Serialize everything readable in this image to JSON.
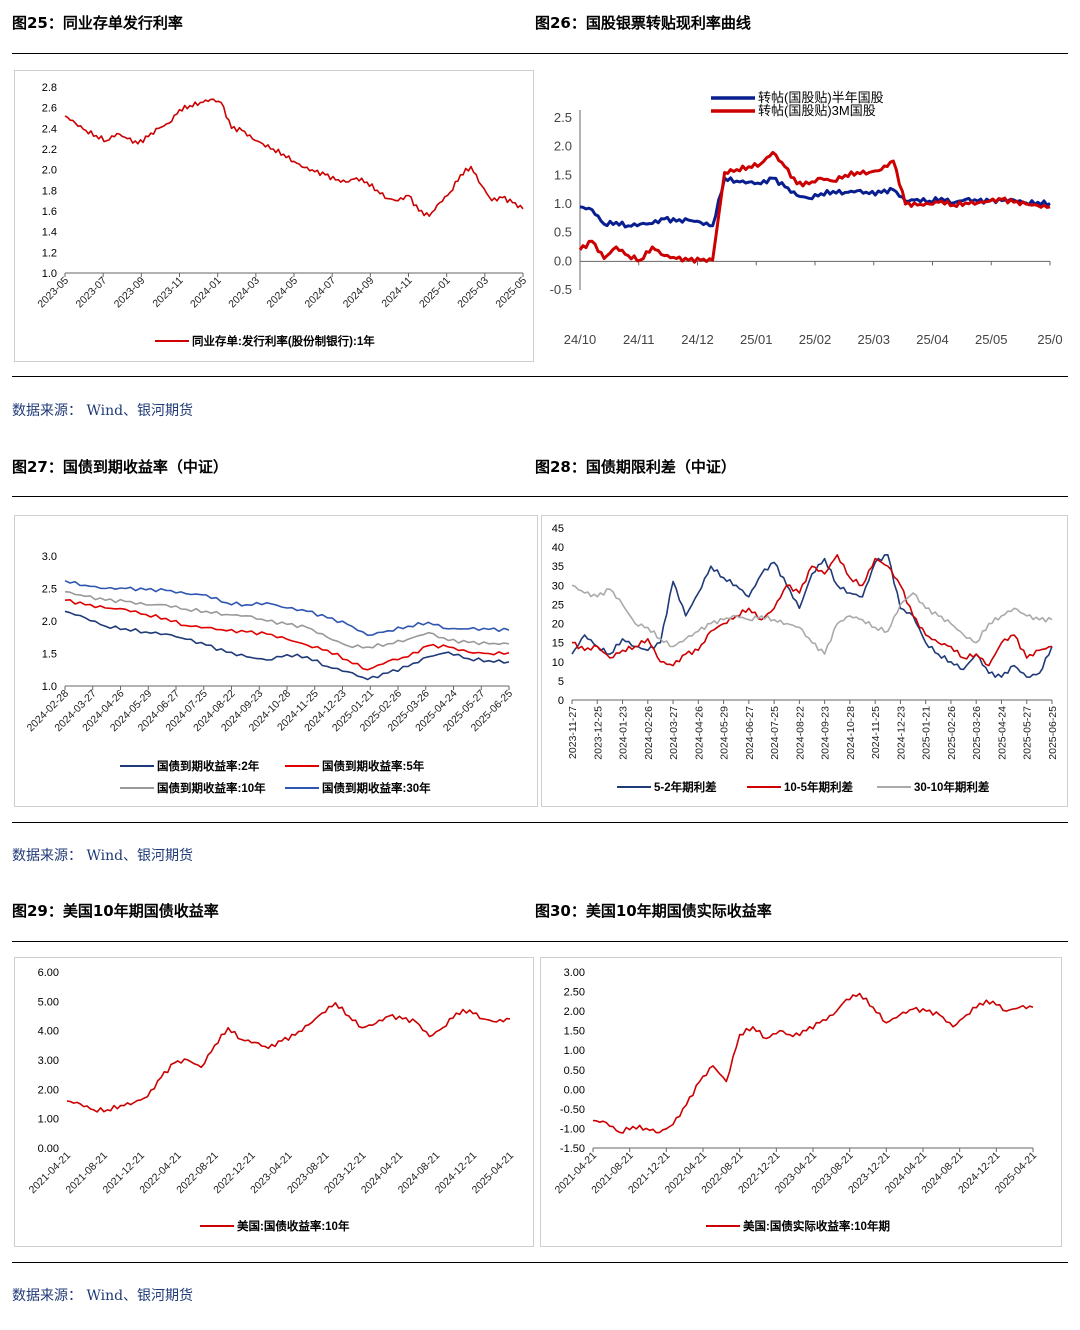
{
  "section1": {
    "left_title": "图25：同业存单发行利率",
    "right_title": "图26：国股银票转贴现利率曲线",
    "source": "数据来源： Wind、银河期货"
  },
  "section2": {
    "left_title": "图27：国债到期收益率（中证）",
    "right_title": "图28：国债期限利差（中证）",
    "source": "数据来源： Wind、银河期货"
  },
  "section3": {
    "left_title": "图29：美国10年期国债收益率",
    "right_title": "图30：美国10年期国债实际收益率",
    "source": "数据来源： Wind、银河期货"
  },
  "chart_data": [
    {
      "id": "fig25",
      "type": "line",
      "y_ticks": [
        "2.8",
        "2.6",
        "2.4",
        "2.2",
        "2.0",
        "1.8",
        "1.6",
        "1.4",
        "1.2",
        "1.0"
      ],
      "ylim": [
        1.0,
        2.8
      ],
      "x_ticks": [
        "2023-05",
        "2023-07",
        "2023-09",
        "2023-11",
        "2024-01",
        "2024-03",
        "2024-05",
        "2024-07",
        "2024-09",
        "2024-11",
        "2025-01",
        "2025-03",
        "2025-05"
      ],
      "series": [
        {
          "name": "同业存单:发行利率(股份制银行):1年",
          "color": "#cc0000",
          "values": [
            2.52,
            2.45,
            2.38,
            2.33,
            2.28,
            2.35,
            2.3,
            2.25,
            2.32,
            2.4,
            2.45,
            2.58,
            2.62,
            2.65,
            2.68,
            2.65,
            2.4,
            2.38,
            2.3,
            2.25,
            2.2,
            2.15,
            2.08,
            2.02,
            1.98,
            1.95,
            1.9,
            1.88,
            1.92,
            1.88,
            1.8,
            1.72,
            1.7,
            1.75,
            1.6,
            1.55,
            1.68,
            1.78,
            1.95,
            2.03,
            1.85,
            1.7,
            1.73,
            1.68,
            1.62
          ]
        }
      ]
    },
    {
      "id": "fig26",
      "type": "line",
      "y_ticks": [
        "2.5",
        "2.0",
        "1.5",
        "1.0",
        "0.5",
        "0.0",
        "-0.5"
      ],
      "ylim": [
        -0.5,
        2.5
      ],
      "x_ticks": [
        "24/10",
        "24/11",
        "24/12",
        "25/01",
        "25/02",
        "25/03",
        "25/04",
        "25/05",
        "25/0"
      ],
      "series": [
        {
          "name": "转帖(国股贴)半年国股",
          "color": "#0a1f8f",
          "values": [
            0.95,
            0.9,
            0.65,
            0.68,
            0.62,
            0.65,
            0.66,
            0.74,
            0.7,
            0.72,
            0.68,
            0.62,
            1.45,
            1.4,
            1.38,
            1.35,
            1.45,
            1.3,
            1.15,
            1.1,
            1.18,
            1.22,
            1.2,
            1.23,
            1.18,
            1.2,
            1.25,
            1.05,
            1.08,
            1.05,
            1.1,
            1.02,
            1.08,
            1.05,
            1.05,
            1.06,
            1.07,
            1.02,
            1.03,
            1.01
          ]
        },
        {
          "name": "转帖(国股贴)3M国股",
          "color": "#cc0000",
          "values": [
            0.2,
            0.35,
            0.05,
            0.25,
            0.1,
            0.02,
            0.25,
            0.1,
            0.05,
            0.02,
            0.02,
            0.02,
            1.55,
            1.6,
            1.65,
            1.7,
            1.9,
            1.65,
            1.35,
            1.35,
            1.45,
            1.4,
            1.5,
            1.55,
            1.55,
            1.6,
            1.75,
            1.0,
            0.98,
            1.0,
            1.05,
            0.98,
            1.02,
            1.02,
            1.05,
            1.08,
            1.03,
            1.0,
            0.97,
            0.95
          ]
        }
      ]
    },
    {
      "id": "fig27",
      "type": "line",
      "y_ticks": [
        "3.0",
        "2.5",
        "2.0",
        "1.5",
        "1.0"
      ],
      "ylim": [
        1.0,
        3.0
      ],
      "x_ticks": [
        "2024-02-28",
        "2024-03-27",
        "2024-04-26",
        "2024-05-29",
        "2024-06-27",
        "2024-07-25",
        "2024-08-22",
        "2024-09-23",
        "2024-10-28",
        "2024-11-25",
        "2024-12-23",
        "2025-01-21",
        "2025-02-26",
        "2025-03-26",
        "2025-04-24",
        "2025-05-27",
        "2025-06-25"
      ],
      "series": [
        {
          "name": "国债到期收益率:2年",
          "color": "#1f3a78",
          "values": [
            2.15,
            2.05,
            1.92,
            1.88,
            1.83,
            1.8,
            1.72,
            1.63,
            1.52,
            1.45,
            1.4,
            1.48,
            1.45,
            1.3,
            1.22,
            1.1,
            1.2,
            1.3,
            1.45,
            1.52,
            1.42,
            1.39,
            1.37
          ]
        },
        {
          "name": "国债到期收益率:5年",
          "color": "#e00000",
          "values": [
            2.32,
            2.25,
            2.2,
            2.18,
            2.1,
            2.04,
            1.93,
            1.9,
            1.85,
            1.83,
            1.8,
            1.72,
            1.63,
            1.55,
            1.4,
            1.25,
            1.38,
            1.45,
            1.62,
            1.6,
            1.52,
            1.5,
            1.51
          ]
        },
        {
          "name": "国债到期收益率:10年",
          "color": "#999999",
          "values": [
            2.45,
            2.38,
            2.32,
            2.3,
            2.25,
            2.25,
            2.18,
            2.15,
            2.1,
            2.08,
            2.0,
            1.95,
            1.9,
            1.75,
            1.62,
            1.6,
            1.65,
            1.72,
            1.82,
            1.7,
            1.67,
            1.65,
            1.65
          ]
        },
        {
          "name": "国债到期收益率:30年",
          "color": "#2f56b0",
          "values": [
            2.62,
            2.55,
            2.5,
            2.5,
            2.48,
            2.47,
            2.42,
            2.4,
            2.28,
            2.25,
            2.28,
            2.2,
            2.15,
            2.05,
            1.95,
            1.78,
            1.85,
            1.92,
            1.98,
            1.88,
            1.88,
            1.87,
            1.86
          ]
        }
      ]
    },
    {
      "id": "fig28",
      "type": "line",
      "y_ticks": [
        "45",
        "40",
        "35",
        "30",
        "25",
        "20",
        "15",
        "10",
        "5",
        "0"
      ],
      "ylim": [
        0,
        45
      ],
      "x_ticks": [
        "2023-11-27",
        "2023-12-25",
        "2024-01-23",
        "2024-02-26",
        "2024-03-27",
        "2024-04-26",
        "2024-05-29",
        "2024-06-27",
        "2024-07-25",
        "2024-08-22",
        "2024-09-23",
        "2024-10-28",
        "2024-11-25",
        "2024-12-23",
        "2025-01-21",
        "2025-02-26",
        "2025-03-26",
        "2025-04-24",
        "2025-05-27",
        "2025-06-25"
      ],
      "series": [
        {
          "name": "5-2年期利差",
          "color": "#1f3a78",
          "values": [
            12,
            17,
            14,
            12,
            16,
            14,
            13,
            15,
            31,
            22,
            28,
            35,
            32,
            30,
            27,
            33,
            36,
            30,
            24,
            33,
            37,
            30,
            28,
            27,
            36,
            38,
            24,
            22,
            15,
            12,
            10,
            8,
            12,
            7,
            6,
            9,
            6,
            7,
            14
          ]
        },
        {
          "name": "10-5年期利差",
          "color": "#cc0000",
          "values": [
            15,
            13,
            14,
            11,
            13,
            14,
            16,
            10,
            9,
            12,
            13,
            18,
            20,
            22,
            24,
            21,
            24,
            30,
            28,
            35,
            33,
            38,
            32,
            30,
            37,
            35,
            30,
            22,
            17,
            15,
            14,
            11,
            12,
            9,
            15,
            17,
            11,
            13,
            14
          ]
        },
        {
          "name": "30-10年期利差",
          "color": "#aaaaaa",
          "values": [
            30,
            28,
            27,
            29,
            25,
            20,
            19,
            16,
            14,
            16,
            18,
            20,
            21,
            22,
            21,
            22,
            21,
            20,
            19,
            15,
            12,
            20,
            22,
            21,
            19,
            18,
            25,
            28,
            24,
            22,
            20,
            17,
            15,
            20,
            22,
            24,
            22,
            21,
            21
          ]
        }
      ]
    },
    {
      "id": "fig29",
      "type": "line",
      "y_ticks": [
        "6.00",
        "5.00",
        "4.00",
        "3.00",
        "2.00",
        "1.00",
        "0.00"
      ],
      "ylim": [
        0,
        6
      ],
      "x_ticks": [
        "2021-04-21",
        "2021-08-21",
        "2021-12-21",
        "2022-04-21",
        "2022-08-21",
        "2022-12-21",
        "2023-04-21",
        "2023-08-21",
        "2023-12-21",
        "2024-04-21",
        "2024-08-21",
        "2024-12-21",
        "2025-04-21"
      ],
      "series": [
        {
          "name": "美国:国债收益率:10年",
          "color": "#cc0000",
          "values": [
            1.6,
            1.5,
            1.3,
            1.3,
            1.45,
            1.55,
            1.75,
            2.4,
            2.9,
            3.0,
            2.75,
            3.5,
            4.1,
            3.7,
            3.6,
            3.4,
            3.65,
            3.85,
            4.2,
            4.6,
            4.95,
            4.5,
            4.1,
            4.25,
            4.5,
            4.4,
            4.3,
            3.8,
            4.1,
            4.6,
            4.7,
            4.4,
            4.3,
            4.4
          ]
        }
      ]
    },
    {
      "id": "fig30",
      "type": "line",
      "y_ticks": [
        "3.00",
        "2.50",
        "2.00",
        "1.50",
        "1.00",
        "0.50",
        "0.00",
        "-0.50",
        "-1.00",
        "-1.50"
      ],
      "ylim": [
        -1.5,
        3.0
      ],
      "x_ticks": [
        "2021-04-21",
        "2021-08-21",
        "2021-12-21",
        "2022-04-21",
        "2022-08-21",
        "2022-12-21",
        "2023-04-21",
        "2023-08-21",
        "2023-12-21",
        "2024-04-21",
        "2024-08-21",
        "2024-12-21",
        "2025-04-21"
      ],
      "series": [
        {
          "name": "美国:国债实际收益率:10年期",
          "color": "#cc0000",
          "values": [
            -0.8,
            -0.85,
            -1.1,
            -0.95,
            -1.0,
            -1.1,
            -0.9,
            -0.4,
            0.2,
            0.6,
            0.2,
            1.4,
            1.6,
            1.3,
            1.5,
            1.35,
            1.5,
            1.7,
            1.9,
            2.3,
            2.45,
            2.1,
            1.7,
            1.9,
            2.05,
            2.0,
            1.9,
            1.6,
            1.9,
            2.2,
            2.25,
            2.0,
            2.1,
            2.1
          ]
        }
      ]
    }
  ],
  "legends": {
    "fig25": [
      "同业存单:发行利率(股份制银行):1年"
    ],
    "fig26": [
      "转帖(国股贴)半年国股",
      "转帖(国股贴)3M国股"
    ],
    "fig27": [
      "国债到期收益率:2年",
      "国债到期收益率:5年",
      "国债到期收益率:10年",
      "国债到期收益率:30年"
    ],
    "fig28": [
      "5-2年期利差",
      "10-5年期利差",
      "30-10年期利差"
    ],
    "fig29": [
      "美国:国债收益率:10年"
    ],
    "fig30": [
      "美国:国债实际收益率:10年期"
    ]
  }
}
